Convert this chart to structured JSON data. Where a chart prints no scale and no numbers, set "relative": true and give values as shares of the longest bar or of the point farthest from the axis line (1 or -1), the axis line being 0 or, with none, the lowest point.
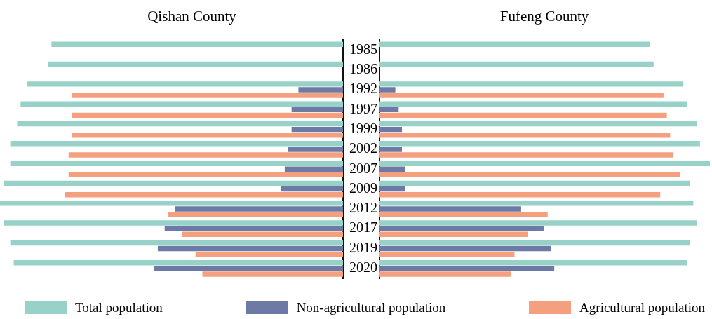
{
  "chart_data": [
    {
      "type": "bar",
      "title": "Qishan County",
      "orientation": "horizontal",
      "relative": true,
      "legend": "bottom",
      "categories": [
        "1985",
        "1986",
        "1992",
        "1997",
        "1999",
        "2002",
        "2007",
        "2009",
        "2012",
        "2017",
        "2019",
        "2020"
      ],
      "series": [
        {
          "name": "Total population",
          "color": "#98d1c8",
          "values": [
            -0.85,
            -0.86,
            -0.92,
            -0.94,
            -0.95,
            -0.97,
            -0.97,
            -0.99,
            -1,
            -0.99,
            -0.97,
            -0.96
          ]
        },
        {
          "name": "Non-agricultural population",
          "color": "#6e7aa6",
          "values": [
            null,
            null,
            -0.13,
            -0.15,
            -0.15,
            -0.16,
            -0.17,
            -0.18,
            -0.49,
            -0.52,
            -0.54,
            -0.55
          ]
        },
        {
          "name": "Agricultural population",
          "color": "#f4a07f",
          "values": [
            null,
            null,
            -0.79,
            -0.79,
            -0.79,
            -0.8,
            -0.8,
            -0.81,
            -0.51,
            -0.47,
            -0.43,
            -0.41
          ]
        }
      ]
    },
    {
      "type": "bar",
      "title": "Fufeng County",
      "orientation": "horizontal",
      "relative": true,
      "tick_labels": false,
      "categories": [
        "1985",
        "1986",
        "1992",
        "1997",
        "1999",
        "2002",
        "2007",
        "2009",
        "2012",
        "2017",
        "2019",
        "2020"
      ],
      "series": [
        {
          "name": "Total population",
          "color": "#98d1c8",
          "values": [
            0.82,
            0.83,
            0.92,
            0.93,
            0.96,
            0.97,
            1,
            0.94,
            0.95,
            0.96,
            0.94,
            0.93
          ]
        },
        {
          "name": "Non-agricultural population",
          "color": "#6e7aa6",
          "values": [
            null,
            null,
            0.05,
            0.06,
            0.07,
            0.07,
            0.08,
            0.08,
            0.43,
            0.5,
            0.52,
            0.53
          ]
        },
        {
          "name": "Agricultural population",
          "color": "#f4a07f",
          "values": [
            null,
            null,
            0.86,
            0.87,
            0.88,
            0.89,
            0.91,
            0.85,
            0.51,
            0.45,
            0.41,
            0.4
          ]
        }
      ]
    }
  ]
}
